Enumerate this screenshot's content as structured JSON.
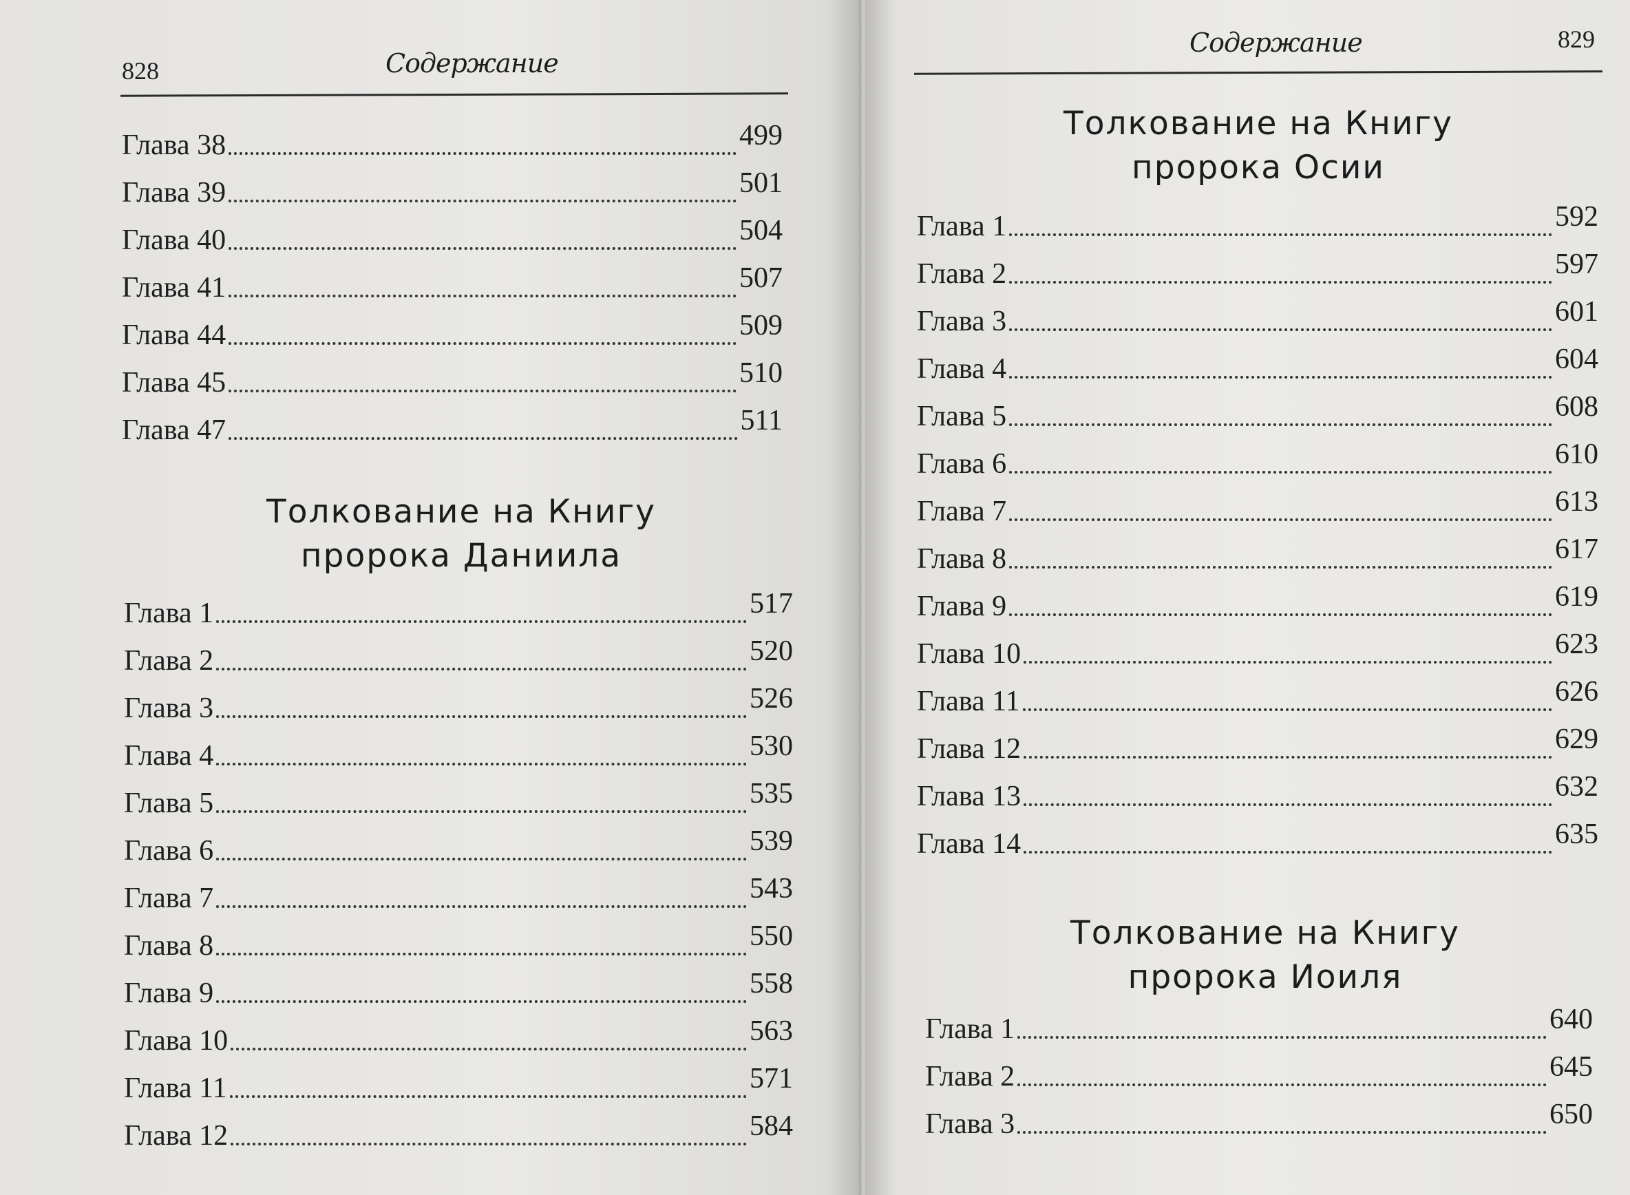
{
  "left_page": {
    "page_number": "828",
    "running_head": "Содержание",
    "entries_top": [
      {
        "label": "Глава 38",
        "page": "499"
      },
      {
        "label": "Глава 39",
        "page": "501"
      },
      {
        "label": "Глава 40",
        "page": "504"
      },
      {
        "label": "Глава 41",
        "page": "507"
      },
      {
        "label": "Глава 44",
        "page": "509"
      },
      {
        "label": "Глава 45",
        "page": "510"
      },
      {
        "label": "Глава 47",
        "page": "511"
      }
    ],
    "section": {
      "title_line1": "Толкование на Книгу",
      "title_line2": "пророка Даниила",
      "entries": [
        {
          "label": "Глава 1",
          "page": "517"
        },
        {
          "label": "Глава 2",
          "page": "520"
        },
        {
          "label": "Глава 3",
          "page": "526"
        },
        {
          "label": "Глава 4",
          "page": "530"
        },
        {
          "label": "Глава 5",
          "page": "535"
        },
        {
          "label": "Глава 6",
          "page": "539"
        },
        {
          "label": "Глава 7",
          "page": "543"
        },
        {
          "label": "Глава 8",
          "page": "550"
        },
        {
          "label": "Глава 9",
          "page": "558"
        },
        {
          "label": "Глава 10",
          "page": "563"
        },
        {
          "label": "Глава 11",
          "page": "571"
        },
        {
          "label": "Глава 12",
          "page": "584"
        }
      ]
    }
  },
  "right_page": {
    "page_number": "829",
    "running_head": "Содержание",
    "sections": [
      {
        "title_line1": "Толкование на Книгу",
        "title_line2": "пророка Осии",
        "entries": [
          {
            "label": "Глава 1",
            "page": "592"
          },
          {
            "label": "Глава 2",
            "page": "597"
          },
          {
            "label": "Глава 3",
            "page": "601"
          },
          {
            "label": "Глава 4",
            "page": "604"
          },
          {
            "label": "Глава 5",
            "page": "608"
          },
          {
            "label": "Глава 6",
            "page": "610"
          },
          {
            "label": "Глава 7",
            "page": "613"
          },
          {
            "label": "Глава 8",
            "page": "617"
          },
          {
            "label": "Глава 9",
            "page": "619"
          },
          {
            "label": "Глава 10",
            "page": "623"
          },
          {
            "label": "Глава 11",
            "page": "626"
          },
          {
            "label": "Глава 12",
            "page": "629"
          },
          {
            "label": "Глава 13",
            "page": "632"
          },
          {
            "label": "Глава 14",
            "page": "635"
          }
        ]
      },
      {
        "title_line1": "Толкование на Книгу",
        "title_line2": "пророка Иоиля",
        "entries": [
          {
            "label": "Глава 1",
            "page": "640"
          },
          {
            "label": "Глава 2",
            "page": "645"
          },
          {
            "label": "Глава 3",
            "page": "650"
          }
        ]
      }
    ]
  }
}
